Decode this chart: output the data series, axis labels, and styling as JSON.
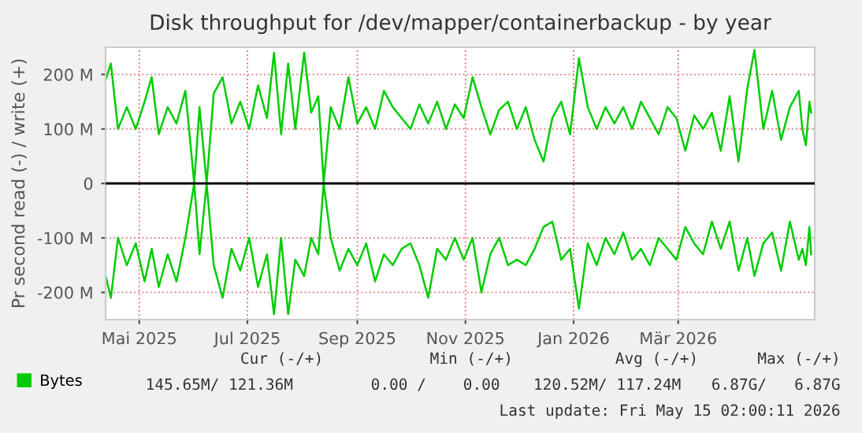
{
  "chart_data": {
    "type": "line",
    "title": "Disk throughput for /dev/mapper/containerbackup - by year",
    "ylabel": "Pr second read (-) / write (+)",
    "x": [
      "2025-04-12",
      "2025-04-15",
      "2025-04-19",
      "2025-04-24",
      "2025-04-29",
      "2025-05-04",
      "2025-05-08",
      "2025-05-12",
      "2025-05-17",
      "2025-05-22",
      "2025-05-27",
      "2025-06-01",
      "2025-06-04",
      "2025-06-08",
      "2025-06-12",
      "2025-06-17",
      "2025-06-22",
      "2025-06-27",
      "2025-07-02",
      "2025-07-07",
      "2025-07-12",
      "2025-07-16",
      "2025-07-20",
      "2025-07-24",
      "2025-07-28",
      "2025-08-02",
      "2025-08-06",
      "2025-08-10",
      "2025-08-13",
      "2025-08-17",
      "2025-08-22",
      "2025-08-27",
      "2025-09-01",
      "2025-09-06",
      "2025-09-11",
      "2025-09-16",
      "2025-09-21",
      "2025-09-26",
      "2025-10-01",
      "2025-10-06",
      "2025-10-11",
      "2025-10-16",
      "2025-10-21",
      "2025-10-26",
      "2025-10-31",
      "2025-11-05",
      "2025-11-10",
      "2025-11-15",
      "2025-11-20",
      "2025-11-25",
      "2025-11-30",
      "2025-12-05",
      "2025-12-10",
      "2025-12-15",
      "2025-12-20",
      "2025-12-25",
      "2025-12-30",
      "2026-01-04",
      "2026-01-09",
      "2026-01-14",
      "2026-01-19",
      "2026-01-24",
      "2026-01-29",
      "2026-02-03",
      "2026-02-08",
      "2026-02-13",
      "2026-02-18",
      "2026-02-23",
      "2026-02-28",
      "2026-03-05",
      "2026-03-10",
      "2026-03-15",
      "2026-03-20",
      "2026-03-25",
      "2026-03-30",
      "2026-04-04",
      "2026-04-09",
      "2026-04-13",
      "2026-04-18",
      "2026-04-23",
      "2026-04-28",
      "2026-05-03",
      "2026-05-08",
      "2026-05-10",
      "2026-05-12",
      "2026-05-14",
      "2026-05-15"
    ],
    "series": [
      {
        "name": "Bytes",
        "color": "#00cc00",
        "values": [
          190,
          220,
          100,
          140,
          100,
          150,
          195,
          90,
          140,
          110,
          170,
          0,
          140,
          0,
          165,
          195,
          110,
          150,
          100,
          180,
          120,
          240,
          90,
          220,
          100,
          240,
          130,
          160,
          0,
          140,
          100,
          195,
          110,
          140,
          100,
          170,
          140,
          120,
          100,
          145,
          110,
          150,
          100,
          145,
          120,
          195,
          140,
          90,
          135,
          150,
          100,
          140,
          80,
          40,
          120,
          150,
          90,
          230,
          140,
          100,
          140,
          110,
          140,
          100,
          150,
          120,
          90,
          140,
          120,
          60,
          125,
          100,
          130,
          60,
          160,
          40,
          175,
          245,
          100,
          170,
          80,
          140,
          170,
          100,
          70,
          150,
          130
        ]
      },
      {
        "name": null,
        "color": "#00cc00",
        "values": [
          -170,
          -210,
          -100,
          -150,
          -110,
          -180,
          -120,
          -190,
          -130,
          -180,
          -100,
          0,
          -130,
          0,
          -150,
          -210,
          -120,
          -160,
          -100,
          -190,
          -130,
          -240,
          -100,
          -240,
          -140,
          -170,
          -100,
          -130,
          0,
          -100,
          -160,
          -120,
          -150,
          -110,
          -180,
          -130,
          -150,
          -120,
          -110,
          -150,
          -210,
          -120,
          -140,
          -100,
          -140,
          -100,
          -200,
          -130,
          -100,
          -150,
          -140,
          -150,
          -120,
          -80,
          -70,
          -140,
          -120,
          -230,
          -110,
          -150,
          -100,
          -130,
          -90,
          -140,
          -120,
          -150,
          -100,
          -120,
          -140,
          -80,
          -110,
          -130,
          -70,
          -120,
          -70,
          -160,
          -100,
          -170,
          -110,
          -90,
          -160,
          -70,
          -140,
          -120,
          -150,
          -80,
          -130
        ]
      }
    ],
    "xlim": [
      "2025-04-12",
      "2026-05-17"
    ],
    "xticks": [
      {
        "value": "2025-05-01",
        "label": "Mai 2025"
      },
      {
        "value": "2025-07-01",
        "label": "Jul 2025"
      },
      {
        "value": "2025-09-01",
        "label": "Sep 2025"
      },
      {
        "value": "2025-11-01",
        "label": "Nov 2025"
      },
      {
        "value": "2026-01-01",
        "label": "Jan 2026"
      },
      {
        "value": "2026-03-01",
        "label": "Mär 2026"
      }
    ],
    "ylim": [
      -250,
      250
    ],
    "yticks": [
      {
        "value": -200,
        "label": "-200 M"
      },
      {
        "value": -100,
        "label": "-100 M"
      },
      0,
      {
        "value": 100,
        "label": "100 M"
      },
      {
        "value": 200,
        "label": "200 M"
      }
    ],
    "ref_lines": [
      {
        "axis": "y",
        "value": 0,
        "label": null,
        "color": "#000000"
      }
    ],
    "grid": true,
    "legend": "bottom",
    "marker": "none",
    "line_style": "solid",
    "annotations": [
      "Cur (-/+)",
      "Min (-/+)",
      "Avg (-/+)",
      "Max (-/+)",
      "145.65M/ 121.36M",
      "0.00 /    0.00",
      "120.52M/ 117.24M",
      "6.87G/   6.87G",
      "Last update: Fri May 15 02:00:11 2026"
    ]
  }
}
